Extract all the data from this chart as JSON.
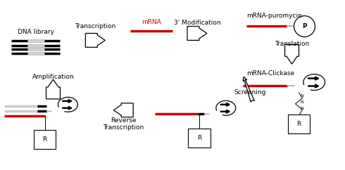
{
  "bg_color": "#ffffff",
  "text_color": "#000000",
  "red_color": "#cc0000",
  "gray_color": "#aaaaaa",
  "black_color": "#000000",
  "labels": {
    "dna_library": "DNA library",
    "transcription": "Transcription",
    "mrna": "mRNA",
    "modification": "3' Modification",
    "mrna_puromycin": "mRNA-puromycin",
    "translation": "Translation",
    "mrna_clickase": "mRNA-Clickase",
    "screening": "Screening",
    "reverse_transcription": "Reverse\nTranscription",
    "amplification": "Amplification"
  },
  "fontsize": 6.5,
  "fig_width": 4.9,
  "fig_height": 2.42
}
